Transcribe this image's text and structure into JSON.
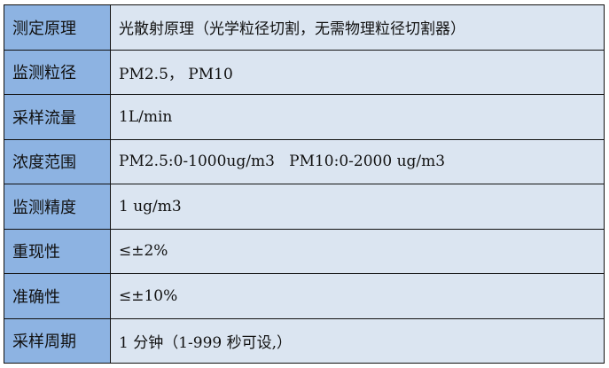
{
  "rows": [
    {
      "label": "测定原理",
      "value": "光散射原理（光学粒径切割，无需物理粒径切割器）"
    },
    {
      "label": "监测粒径",
      "value": "PM2.5， PM10"
    },
    {
      "label": "采样流量",
      "value": "1L/min"
    },
    {
      "label": "浓度范围",
      "value": "PM2.5:0-1000ug/m3   PM10:0-2000 ug/m3"
    },
    {
      "label": "监测精度",
      "value": "1 ug/m3"
    },
    {
      "label": "重现性",
      "value": "≤±2%"
    },
    {
      "label": "准确性",
      "value": "≤±10%"
    },
    {
      "label": "采样周期",
      "value": "1 分钟（1-999 秒可设,）"
    }
  ]
}
